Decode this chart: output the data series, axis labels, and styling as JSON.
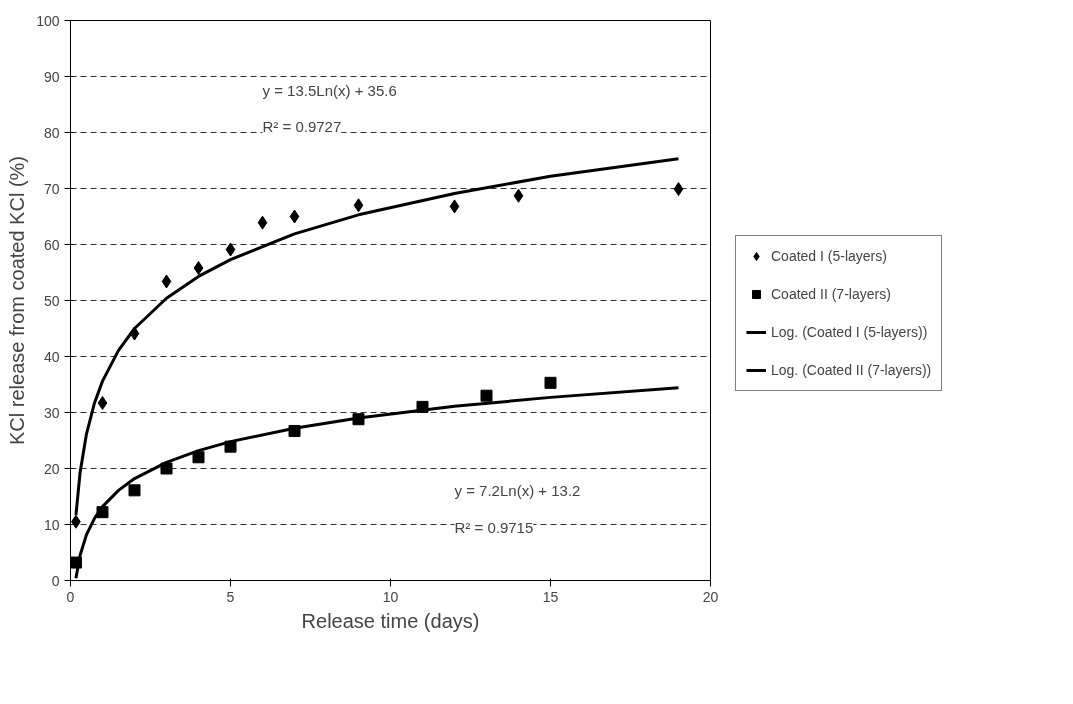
{
  "chart_data": {
    "type": "scatter",
    "xlabel": "Release time (days)",
    "ylabel": "KCl release from coated KCl (%)",
    "xlim": [
      0,
      20
    ],
    "xticks": [
      0,
      5,
      10,
      15,
      20
    ],
    "ylim": [
      0,
      100
    ],
    "yticks": [
      0,
      10,
      20,
      30,
      40,
      50,
      60,
      70,
      80,
      90,
      100
    ],
    "grid": "y",
    "legend": "right",
    "annotations": [
      "y = 13.5Ln(x) + 35.6",
      "R² = 0.9727",
      "y = 7.2Ln(x) + 13.2",
      "R² = 0.9715"
    ],
    "series": [
      {
        "name": "Coated I (5-layers)",
        "marker": "diamond",
        "color": "#000000",
        "x": [
          0.17,
          1,
          2,
          3,
          4,
          5,
          6,
          7,
          9,
          12,
          14,
          19
        ],
        "values": [
          10.5,
          31.7,
          44.1,
          53.4,
          55.8,
          59.1,
          63.9,
          65.0,
          67.0,
          66.8,
          68.7,
          69.9
        ]
      },
      {
        "name": "Coated II (7-layers)",
        "marker": "square",
        "color": "#000000",
        "x": [
          0.17,
          1,
          2,
          3,
          4,
          5,
          7,
          9,
          11,
          13,
          15
        ],
        "values": [
          3.2,
          12.2,
          16.1,
          20.0,
          22.0,
          23.9,
          26.7,
          28.8,
          31.0,
          33.0,
          35.3
        ]
      },
      {
        "name": "Log. (Coated I (5-layers))",
        "type": "line",
        "line_style": "solid",
        "color": "#000000",
        "x": [
          0.17,
          0.3,
          0.5,
          0.75,
          1,
          1.5,
          2,
          3,
          4,
          5,
          7,
          9,
          12,
          15,
          19
        ],
        "values": [
          11.7,
          19.3,
          26.2,
          31.7,
          35.6,
          41.1,
          45.0,
          50.4,
          54.3,
          57.3,
          61.9,
          65.3,
          69.1,
          72.2,
          75.3
        ]
      },
      {
        "name": "Log. (Coated II (7-layers))",
        "type": "line",
        "line_style": "solid",
        "color": "#000000",
        "x": [
          0.17,
          0.3,
          0.5,
          0.75,
          1,
          1.5,
          2,
          3,
          4,
          5,
          7,
          9,
          12,
          15,
          19
        ],
        "values": [
          0.4,
          4.5,
          8.2,
          11.1,
          13.2,
          16.1,
          18.2,
          21.1,
          23.2,
          24.8,
          27.2,
          29.0,
          31.1,
          32.7,
          34.4
        ]
      }
    ]
  }
}
